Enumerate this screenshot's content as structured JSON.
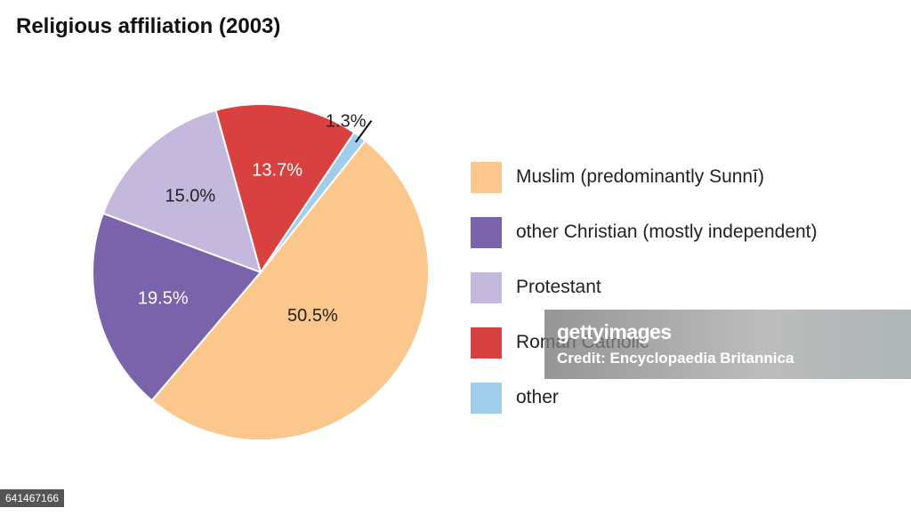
{
  "chart_data": {
    "type": "pie",
    "title": "Religious affiliation (2003)",
    "slices": [
      {
        "name": "Muslim (predominantly Sunnī)",
        "value": 50.5,
        "label": "50.5%",
        "color": "#fbc78c"
      },
      {
        "name": "other Christian (mostly independent)",
        "value": 19.5,
        "label": "19.5%",
        "color": "#7b63ab"
      },
      {
        "name": "Protestant",
        "value": 15.0,
        "label": "15.0%",
        "color": "#c4b8dc"
      },
      {
        "name": "Roman Catholic",
        "value": 13.7,
        "label": "13.7%",
        "color": "#d94040"
      },
      {
        "name": "other",
        "value": 1.3,
        "label": "1.3%",
        "color": "#9fcdea"
      }
    ],
    "legend_placement": "right"
  },
  "watermark": {
    "brand": "gettyimages",
    "credit": "Credit: Encyclopaedia Britannica"
  },
  "image_id": "641467166"
}
